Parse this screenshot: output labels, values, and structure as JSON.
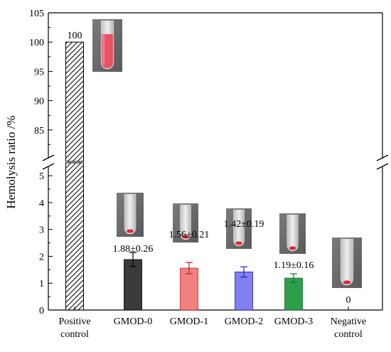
{
  "chart_data": {
    "type": "bar",
    "ylabel": "Hemolysis ratio /%",
    "xlabel": "",
    "axis_break": true,
    "lower_ylim": [
      0,
      5.4
    ],
    "lower_yticks": [
      0,
      1,
      2,
      3,
      4,
      5
    ],
    "upper_ylim": [
      80,
      105
    ],
    "upper_yticks": [
      85,
      90,
      95,
      100,
      105
    ],
    "categories": [
      [
        "Positive",
        "control"
      ],
      [
        "GMOD-0"
      ],
      [
        "GMOD-1"
      ],
      [
        "GMOD-2"
      ],
      [
        "GMOD-3"
      ],
      [
        "Negative",
        "control"
      ]
    ],
    "values": [
      100,
      1.88,
      1.56,
      1.42,
      1.19,
      0
    ],
    "errors": [
      null,
      0.26,
      0.21,
      0.19,
      0.16,
      null
    ],
    "data_labels": [
      "100",
      "1.88±0.26",
      "1.56±0.21",
      "1.42±0.19",
      "1.19±0.16",
      "0"
    ],
    "colors": [
      "hatched",
      "#3a3a3a",
      "#f08080",
      "#8080f0",
      "#2e9e48",
      "none"
    ],
    "error_colors": [
      "#000000",
      "#000000",
      "#c02020",
      "#2020c0",
      "#107030",
      "#000000"
    ],
    "grid": false,
    "legend": "none"
  }
}
